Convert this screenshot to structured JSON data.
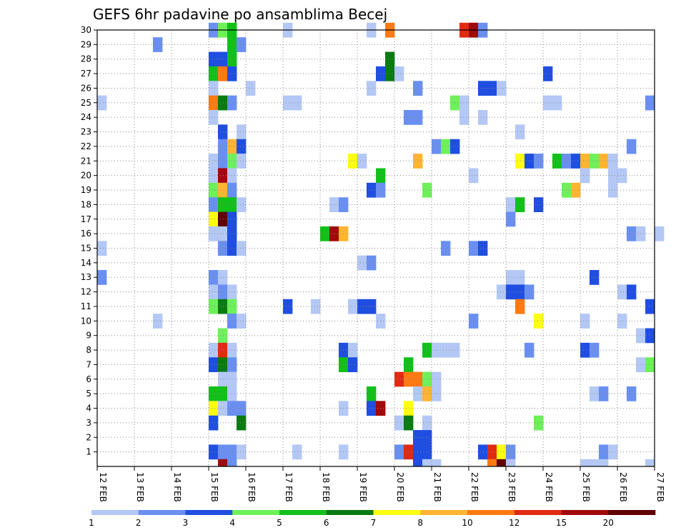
{
  "chart_data": {
    "type": "heatmap",
    "title": "GEFS 6hr padavine po ansamblima Becej",
    "x_ticks": [
      "12 FEB",
      "13 FEB",
      "14 FEB",
      "15 FEB",
      "16 FEB",
      "17 FEB",
      "18 FEB",
      "19 FEB",
      "20 FEB",
      "21 FEB",
      "22 FEB",
      "23 FEB",
      "24 FEB",
      "25 FEB",
      "26 FEB",
      "27 FEB"
    ],
    "y_ticks": [
      1,
      2,
      3,
      4,
      5,
      6,
      7,
      8,
      9,
      10,
      11,
      12,
      13,
      14,
      15,
      16,
      17,
      18,
      19,
      20,
      21,
      22,
      23,
      24,
      25,
      26,
      27,
      28,
      29,
      30
    ],
    "x_range_steps": [
      0,
      60
    ],
    "y_range": [
      0,
      30
    ],
    "grid": true,
    "colorbar": {
      "labels": [
        "1",
        "2",
        "3",
        "4",
        "5",
        "6",
        "7",
        "8",
        "10",
        "12",
        "15",
        "20"
      ],
      "colors": [
        "#b4c8f5",
        "#6a8ff0",
        "#1f4ee0",
        "#6ef05a",
        "#12c01a",
        "#0a7a12",
        "#ffff12",
        "#ffb432",
        "#ff7a12",
        "#e02a12",
        "#a00a0a",
        "#600000"
      ]
    },
    "cells": [
      {
        "member": 30,
        "steps": [
          [
            12,
            1
          ],
          [
            13,
            3
          ],
          [
            14,
            4
          ],
          [
            20,
            0
          ],
          [
            29,
            0
          ],
          [
            31,
            8
          ],
          [
            39,
            9
          ],
          [
            40,
            10
          ],
          [
            41,
            1
          ]
        ]
      },
      {
        "member": 29,
        "steps": [
          [
            6,
            1
          ],
          [
            14,
            4
          ],
          [
            15,
            1
          ]
        ]
      },
      {
        "member": 28,
        "steps": [
          [
            12,
            2
          ],
          [
            13,
            2
          ],
          [
            14,
            4
          ],
          [
            31,
            5
          ]
        ]
      },
      {
        "member": 27,
        "steps": [
          [
            12,
            4
          ],
          [
            13,
            8
          ],
          [
            14,
            2
          ],
          [
            30,
            2
          ],
          [
            31,
            5
          ],
          [
            32,
            0
          ],
          [
            48,
            2
          ]
        ]
      },
      {
        "member": 26,
        "steps": [
          [
            12,
            0
          ],
          [
            16,
            0
          ],
          [
            29,
            0
          ],
          [
            34,
            1
          ],
          [
            41,
            2
          ],
          [
            42,
            2
          ],
          [
            43,
            0
          ]
        ]
      },
      {
        "member": 25,
        "steps": [
          [
            0,
            0
          ],
          [
            12,
            8
          ],
          [
            13,
            5
          ],
          [
            14,
            1
          ],
          [
            20,
            0
          ],
          [
            21,
            0
          ],
          [
            38,
            3
          ],
          [
            39,
            0
          ],
          [
            48,
            0
          ],
          [
            49,
            0
          ],
          [
            59,
            1
          ]
        ]
      },
      {
        "member": 24,
        "steps": [
          [
            12,
            0
          ],
          [
            33,
            1
          ],
          [
            34,
            1
          ],
          [
            39,
            0
          ],
          [
            41,
            0
          ]
        ]
      },
      {
        "member": 23,
        "steps": [
          [
            13,
            2
          ],
          [
            15,
            0
          ],
          [
            45,
            0
          ]
        ]
      },
      {
        "member": 22,
        "steps": [
          [
            13,
            1
          ],
          [
            14,
            7
          ],
          [
            15,
            2
          ],
          [
            36,
            1
          ],
          [
            37,
            3
          ],
          [
            38,
            2
          ],
          [
            57,
            1
          ]
        ]
      },
      {
        "member": 21,
        "steps": [
          [
            12,
            0
          ],
          [
            13,
            1
          ],
          [
            14,
            3
          ],
          [
            15,
            0
          ],
          [
            27,
            6
          ],
          [
            28,
            0
          ],
          [
            34,
            7
          ],
          [
            45,
            6
          ],
          [
            46,
            2
          ],
          [
            47,
            1
          ],
          [
            49,
            4
          ],
          [
            50,
            1
          ],
          [
            51,
            2
          ],
          [
            52,
            7
          ],
          [
            53,
            3
          ],
          [
            54,
            7
          ],
          [
            55,
            0
          ]
        ]
      },
      {
        "member": 20,
        "steps": [
          [
            12,
            0
          ],
          [
            13,
            10
          ],
          [
            14,
            0
          ],
          [
            30,
            4
          ],
          [
            40,
            0
          ],
          [
            52,
            0
          ],
          [
            55,
            0
          ],
          [
            56,
            0
          ]
        ]
      },
      {
        "member": 19,
        "steps": [
          [
            12,
            3
          ],
          [
            13,
            7
          ],
          [
            14,
            1
          ],
          [
            29,
            2
          ],
          [
            30,
            1
          ],
          [
            35,
            3
          ],
          [
            50,
            3
          ],
          [
            51,
            7
          ],
          [
            55,
            0
          ]
        ]
      },
      {
        "member": 18,
        "steps": [
          [
            12,
            1
          ],
          [
            13,
            4
          ],
          [
            14,
            4
          ],
          [
            15,
            0
          ],
          [
            25,
            0
          ],
          [
            26,
            1
          ],
          [
            44,
            0
          ],
          [
            45,
            4
          ],
          [
            47,
            2
          ]
        ]
      },
      {
        "member": 17,
        "steps": [
          [
            12,
            6
          ],
          [
            13,
            11
          ],
          [
            14,
            2
          ],
          [
            44,
            1
          ]
        ]
      },
      {
        "member": 16,
        "steps": [
          [
            12,
            0
          ],
          [
            13,
            0
          ],
          [
            14,
            2
          ],
          [
            24,
            4
          ],
          [
            25,
            10
          ],
          [
            26,
            7
          ],
          [
            57,
            1
          ],
          [
            58,
            0
          ],
          [
            60,
            0
          ]
        ]
      },
      {
        "member": 15,
        "steps": [
          [
            0,
            0
          ],
          [
            13,
            1
          ],
          [
            14,
            2
          ],
          [
            15,
            0
          ],
          [
            37,
            1
          ],
          [
            40,
            1
          ],
          [
            41,
            2
          ]
        ]
      },
      {
        "member": 14,
        "steps": [
          [
            28,
            0
          ],
          [
            29,
            1
          ]
        ]
      },
      {
        "member": 13,
        "steps": [
          [
            0,
            1
          ],
          [
            12,
            1
          ],
          [
            13,
            0
          ],
          [
            44,
            0
          ],
          [
            45,
            0
          ],
          [
            53,
            2
          ]
        ]
      },
      {
        "member": 12,
        "steps": [
          [
            12,
            0
          ],
          [
            13,
            1
          ],
          [
            14,
            0
          ],
          [
            43,
            0
          ],
          [
            44,
            2
          ],
          [
            45,
            2
          ],
          [
            46,
            1
          ],
          [
            56,
            0
          ],
          [
            57,
            2
          ]
        ]
      },
      {
        "member": 11,
        "steps": [
          [
            12,
            3
          ],
          [
            13,
            5
          ],
          [
            14,
            3
          ],
          [
            20,
            2
          ],
          [
            23,
            0
          ],
          [
            27,
            0
          ],
          [
            28,
            2
          ],
          [
            29,
            2
          ],
          [
            45,
            8
          ],
          [
            59,
            2
          ]
        ]
      },
      {
        "member": 10,
        "steps": [
          [
            6,
            0
          ],
          [
            14,
            1
          ],
          [
            15,
            0
          ],
          [
            30,
            0
          ],
          [
            40,
            1
          ],
          [
            47,
            6
          ],
          [
            52,
            0
          ],
          [
            56,
            0
          ]
        ]
      },
      {
        "member": 9,
        "steps": [
          [
            13,
            3
          ],
          [
            58,
            0
          ],
          [
            59,
            2
          ]
        ]
      },
      {
        "member": 8,
        "steps": [
          [
            12,
            0
          ],
          [
            13,
            9
          ],
          [
            14,
            0
          ],
          [
            26,
            2
          ],
          [
            27,
            0
          ],
          [
            35,
            4
          ],
          [
            36,
            0
          ],
          [
            37,
            0
          ],
          [
            38,
            0
          ],
          [
            46,
            1
          ],
          [
            52,
            2
          ],
          [
            53,
            1
          ]
        ]
      },
      {
        "member": 7,
        "steps": [
          [
            12,
            2
          ],
          [
            13,
            5
          ],
          [
            14,
            1
          ],
          [
            26,
            4
          ],
          [
            27,
            2
          ],
          [
            33,
            4
          ],
          [
            58,
            0
          ],
          [
            59,
            3
          ]
        ]
      },
      {
        "member": 6,
        "steps": [
          [
            13,
            0
          ],
          [
            14,
            0
          ],
          [
            32,
            9
          ],
          [
            33,
            8
          ],
          [
            34,
            8
          ],
          [
            35,
            3
          ],
          [
            36,
            0
          ]
        ]
      },
      {
        "member": 5,
        "steps": [
          [
            12,
            4
          ],
          [
            13,
            4
          ],
          [
            14,
            0
          ],
          [
            29,
            4
          ],
          [
            34,
            0
          ],
          [
            35,
            7
          ],
          [
            36,
            0
          ],
          [
            53,
            0
          ],
          [
            54,
            1
          ],
          [
            57,
            1
          ]
        ]
      },
      {
        "member": 4,
        "steps": [
          [
            12,
            6
          ],
          [
            13,
            0
          ],
          [
            14,
            1
          ],
          [
            15,
            1
          ],
          [
            26,
            0
          ],
          [
            29,
            2
          ],
          [
            30,
            10
          ],
          [
            33,
            6
          ]
        ]
      },
      {
        "member": 3,
        "steps": [
          [
            12,
            2
          ],
          [
            15,
            5
          ],
          [
            32,
            0
          ],
          [
            33,
            5
          ],
          [
            35,
            0
          ],
          [
            47,
            3
          ]
        ]
      },
      {
        "member": 2,
        "steps": [
          [
            34,
            2
          ],
          [
            35,
            2
          ]
        ]
      },
      {
        "member": 1,
        "steps": [
          [
            12,
            2
          ],
          [
            13,
            1
          ],
          [
            14,
            1
          ],
          [
            15,
            0
          ],
          [
            21,
            0
          ],
          [
            26,
            0
          ],
          [
            32,
            1
          ],
          [
            33,
            9
          ],
          [
            34,
            2
          ],
          [
            35,
            2
          ],
          [
            41,
            2
          ],
          [
            42,
            9
          ],
          [
            43,
            6
          ],
          [
            44,
            1
          ],
          [
            54,
            1
          ],
          [
            55,
            0
          ]
        ]
      },
      {
        "member": 0,
        "steps": [
          [
            13,
            10
          ],
          [
            14,
            1
          ],
          [
            34,
            2
          ],
          [
            35,
            0
          ],
          [
            36,
            0
          ],
          [
            42,
            8
          ],
          [
            43,
            11
          ],
          [
            44,
            0
          ],
          [
            52,
            0
          ],
          [
            53,
            0
          ],
          [
            54,
            0
          ],
          [
            59,
            0
          ]
        ]
      }
    ]
  }
}
